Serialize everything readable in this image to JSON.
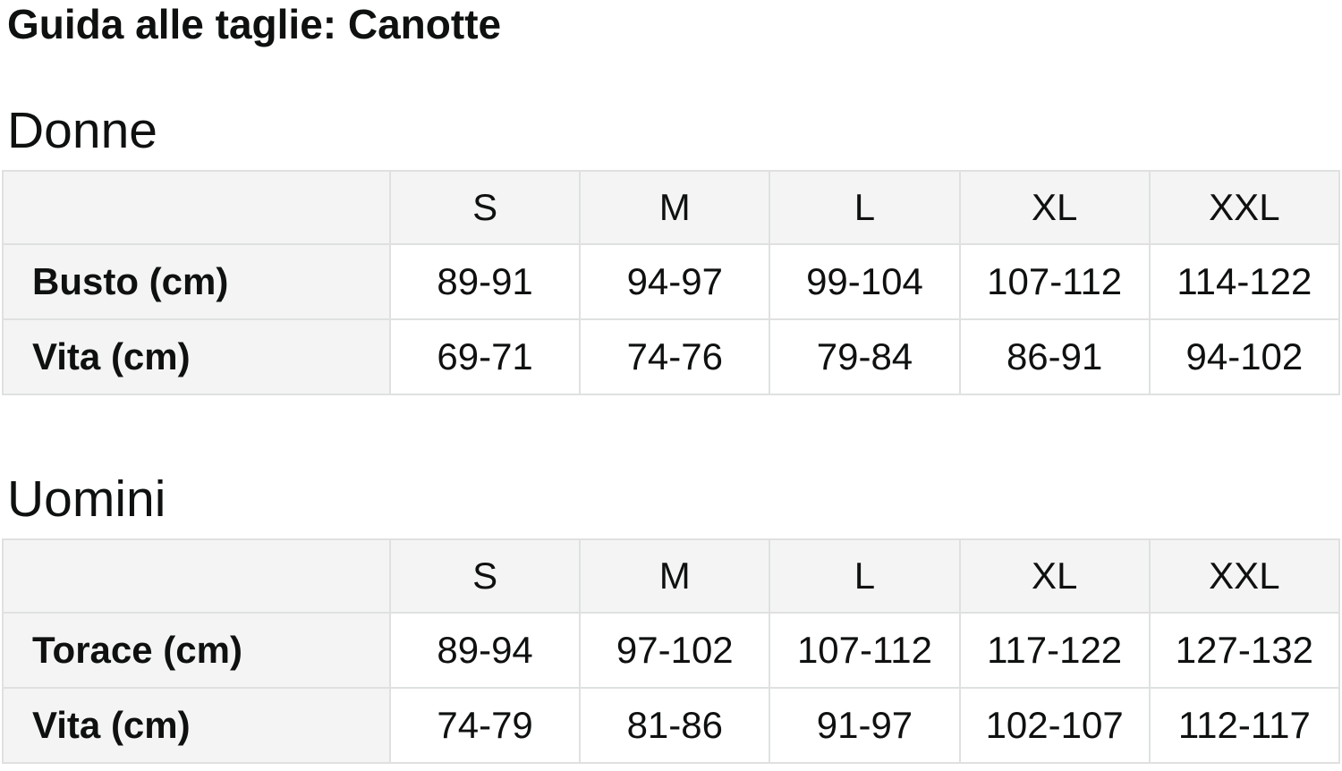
{
  "page": {
    "title": "Guida alle taglie: Canotte"
  },
  "colors": {
    "text": "#0f1111",
    "header_bg": "#f4f4f4",
    "border": "#dfe1e1",
    "cell_bg": "#ffffff",
    "page_bg": "#ffffff"
  },
  "tables": [
    {
      "section_title": "Donne",
      "columns": [
        "S",
        "M",
        "L",
        "XL",
        "XXL"
      ],
      "rows": [
        {
          "label": "Busto (cm)",
          "values": [
            "89-91",
            "94-97",
            "99-104",
            "107-112",
            "114-122"
          ]
        },
        {
          "label": "Vita (cm)",
          "values": [
            "69-71",
            "74-76",
            "79-84",
            "86-91",
            "94-102"
          ]
        }
      ]
    },
    {
      "section_title": "Uomini",
      "columns": [
        "S",
        "M",
        "L",
        "XL",
        "XXL"
      ],
      "rows": [
        {
          "label": "Torace (cm)",
          "values": [
            "89-94",
            "97-102",
            "107-112",
            "117-122",
            "127-132"
          ]
        },
        {
          "label": "Vita (cm)",
          "values": [
            "74-79",
            "81-86",
            "91-97",
            "102-107",
            "112-117"
          ]
        }
      ]
    }
  ]
}
